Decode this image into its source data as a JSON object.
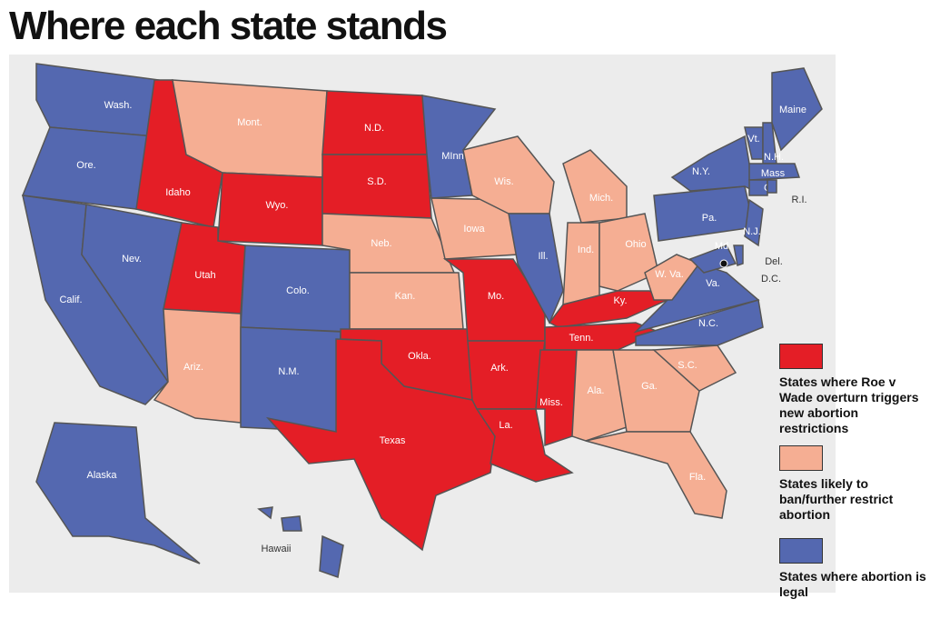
{
  "title": "Where each state stands",
  "legend": [
    {
      "status": "trigger",
      "color": "#e41e26",
      "label": "States where Roe v Wade overturn triggers new abortion restrictions"
    },
    {
      "status": "likely",
      "color": "#f5ae93",
      "label": "States likely to ban/further restrict abortion"
    },
    {
      "status": "legal",
      "color": "#5468b0",
      "label": "States where abortion is legal"
    }
  ],
  "states": [
    {
      "label": "Wash.",
      "status": "legal"
    },
    {
      "label": "Ore.",
      "status": "legal"
    },
    {
      "label": "Calif.",
      "status": "legal"
    },
    {
      "label": "Nev.",
      "status": "legal"
    },
    {
      "label": "Idaho",
      "status": "trigger"
    },
    {
      "label": "Mont.",
      "status": "likely"
    },
    {
      "label": "Wyo.",
      "status": "trigger"
    },
    {
      "label": "Utah",
      "status": "trigger"
    },
    {
      "label": "Colo.",
      "status": "legal"
    },
    {
      "label": "Ariz.",
      "status": "likely"
    },
    {
      "label": "N.M.",
      "status": "legal"
    },
    {
      "label": "N.D.",
      "status": "trigger"
    },
    {
      "label": "S.D.",
      "status": "trigger"
    },
    {
      "label": "Neb.",
      "status": "likely"
    },
    {
      "label": "Kan.",
      "status": "likely"
    },
    {
      "label": "Okla.",
      "status": "trigger"
    },
    {
      "label": "Texas",
      "status": "trigger"
    },
    {
      "label": "MInn.",
      "status": "legal"
    },
    {
      "label": "Iowa",
      "status": "likely"
    },
    {
      "label": "Mo.",
      "status": "trigger"
    },
    {
      "label": "Ark.",
      "status": "trigger"
    },
    {
      "label": "La.",
      "status": "trigger"
    },
    {
      "label": "Wis.",
      "status": "likely"
    },
    {
      "label": "Ill.",
      "status": "legal"
    },
    {
      "label": "Mich.",
      "status": "likely"
    },
    {
      "label": "Ind.",
      "status": "likely"
    },
    {
      "label": "Ohio",
      "status": "likely"
    },
    {
      "label": "Ky.",
      "status": "trigger"
    },
    {
      "label": "Tenn.",
      "status": "trigger"
    },
    {
      "label": "Miss.",
      "status": "trigger"
    },
    {
      "label": "Ala.",
      "status": "likely"
    },
    {
      "label": "Ga.",
      "status": "likely"
    },
    {
      "label": "Fla.",
      "status": "likely"
    },
    {
      "label": "S.C.",
      "status": "likely"
    },
    {
      "label": "N.C.",
      "status": "legal"
    },
    {
      "label": "Va.",
      "status": "legal"
    },
    {
      "label": "W. Va.",
      "status": "likely"
    },
    {
      "label": "Pa.",
      "status": "legal"
    },
    {
      "label": "N.Y.",
      "status": "legal"
    },
    {
      "label": "N.J.",
      "status": "legal"
    },
    {
      "label": "Md.",
      "status": "legal"
    },
    {
      "label": "Del.",
      "status": "legal"
    },
    {
      "label": "D.C.",
      "status": "legal"
    },
    {
      "label": "Vt.",
      "status": "legal"
    },
    {
      "label": "N.H.",
      "status": "legal"
    },
    {
      "label": "Mass",
      "status": "legal"
    },
    {
      "label": "Ct.",
      "status": "legal"
    },
    {
      "label": "R.I.",
      "status": "legal"
    },
    {
      "label": "Maine",
      "status": "legal"
    },
    {
      "label": "Alaska",
      "status": "legal"
    },
    {
      "label": "Hawaii",
      "status": "legal"
    }
  ]
}
